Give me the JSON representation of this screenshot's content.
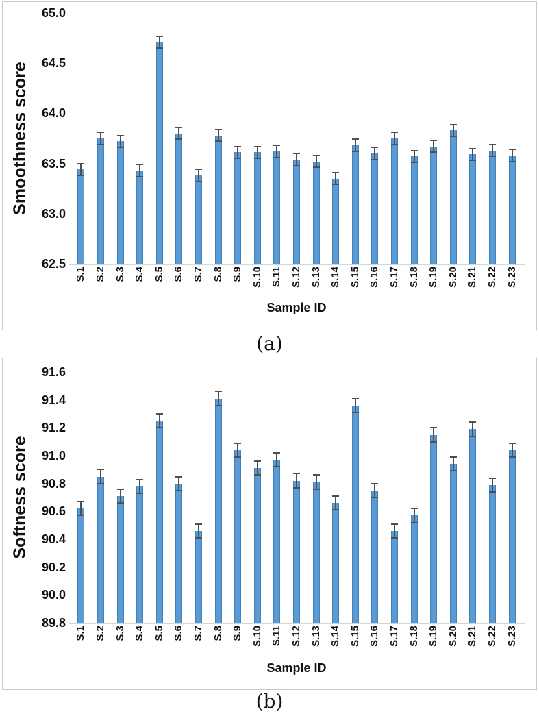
{
  "captions": {
    "a": "(a)",
    "b": "(b)"
  },
  "colors": {
    "bar_fill": "#5B9BD5",
    "bar_border": "#4381BD",
    "error_bar": "#4F4F4F",
    "axis_line": "#D6D6D6",
    "panel_border": "#C9C9C9",
    "text": "#111111",
    "background": "#FFFFFF"
  },
  "chart_data": [
    {
      "type": "bar",
      "title": "",
      "xlabel": "Sample ID",
      "ylabel": "Smoothness score",
      "ylim": [
        62.5,
        65.0
      ],
      "ytick_step": 0.5,
      "yticks": [
        "62.5",
        "63.0",
        "63.5",
        "64.0",
        "64.5",
        "65.0"
      ],
      "grid": false,
      "legend": false,
      "error_bar": 0.06,
      "categories": [
        "S.1",
        "S.2",
        "S.3",
        "S.4",
        "S.5",
        "S.6",
        "S.7",
        "S.8",
        "S.9",
        "S.10",
        "S.11",
        "S.12",
        "S.13",
        "S.14",
        "S.15",
        "S.16",
        "S.17",
        "S.18",
        "S.19",
        "S.20",
        "S.21",
        "S.22",
        "S.23"
      ],
      "values": [
        63.44,
        63.75,
        63.72,
        63.43,
        64.71,
        63.8,
        63.38,
        63.78,
        63.61,
        63.61,
        63.62,
        63.54,
        63.52,
        63.35,
        63.68,
        63.6,
        63.75,
        63.57,
        63.67,
        63.83,
        63.59,
        63.63,
        63.58
      ]
    },
    {
      "type": "bar",
      "title": "",
      "xlabel": "Sample ID",
      "ylabel": "Softness score",
      "ylim": [
        89.8,
        91.6
      ],
      "ytick_step": 0.2,
      "yticks": [
        "89.8",
        "90.0",
        "90.2",
        "90.4",
        "90.6",
        "90.8",
        "91.0",
        "91.2",
        "91.4",
        "91.6"
      ],
      "grid": false,
      "legend": false,
      "error_bar": 0.05,
      "categories": [
        "S.1",
        "S.2",
        "S.3",
        "S.4",
        "S.5",
        "S.6",
        "S.7",
        "S.8",
        "S.9",
        "S.10",
        "S.11",
        "S.12",
        "S.13",
        "S.14",
        "S.15",
        "S.16",
        "S.17",
        "S.18",
        "S.19",
        "S.20",
        "S.21",
        "S.22",
        "S.23"
      ],
      "values": [
        90.62,
        90.85,
        90.71,
        90.78,
        91.25,
        90.8,
        90.46,
        91.41,
        91.04,
        90.91,
        90.97,
        90.82,
        90.81,
        90.66,
        91.36,
        90.75,
        90.46,
        90.57,
        91.15,
        90.94,
        91.19,
        90.79,
        91.04
      ]
    }
  ]
}
